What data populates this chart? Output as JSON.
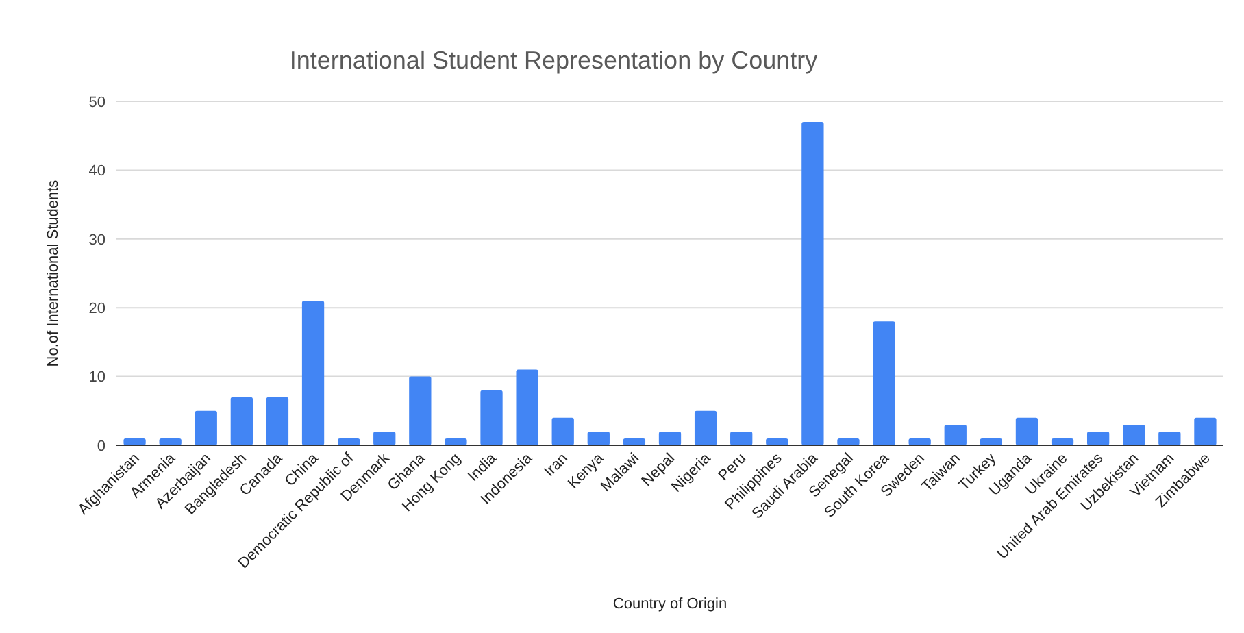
{
  "chart_data": {
    "type": "bar",
    "title": "International Student Representation by Country",
    "xlabel": "Country of Origin",
    "ylabel": "No.of International Students",
    "categories": [
      "Afghanistan",
      "Armenia",
      "Azerbaijan",
      "Bangladesh",
      "Canada",
      "China",
      "Democratic Republic of",
      "Denmark",
      "Ghana",
      "Hong Kong",
      "India",
      "Indonesia",
      "Iran",
      "Kenya",
      "Malawi",
      "Nepal",
      "Nigeria",
      "Peru",
      "Philippines",
      "Saudi Arabia",
      "Senegal",
      "South Korea",
      "Sweden",
      "Taiwan",
      "Turkey",
      "Uganda",
      "Ukraine",
      "United Arab Emirates",
      "Uzbekistan",
      "Vietnam",
      "Zimbabwe"
    ],
    "values": [
      1,
      1,
      5,
      7,
      7,
      21,
      1,
      2,
      10,
      1,
      8,
      11,
      4,
      2,
      1,
      2,
      5,
      2,
      1,
      47,
      1,
      18,
      1,
      3,
      1,
      4,
      1,
      2,
      3,
      2,
      4
    ],
    "color": "#4285f4",
    "ylim": [
      0,
      50
    ],
    "yticks": [
      0,
      10,
      20,
      30,
      40,
      50
    ],
    "grid": "y"
  }
}
